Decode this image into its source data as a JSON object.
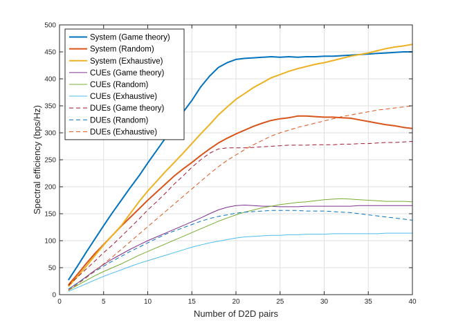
{
  "chart_data": {
    "type": "line",
    "title": "",
    "xlabel": "Number of D2D pairs",
    "ylabel": "Spectral efficiency (bps/Hz)",
    "xlim": [
      0,
      40
    ],
    "ylim": [
      0,
      500
    ],
    "xticks": [
      0,
      5,
      10,
      15,
      20,
      25,
      30,
      35,
      40
    ],
    "yticks": [
      0,
      50,
      100,
      150,
      200,
      250,
      300,
      350,
      400,
      450,
      500
    ],
    "grid": true,
    "legend_position": "top-left",
    "x": [
      1,
      2,
      3,
      4,
      5,
      6,
      7,
      8,
      9,
      10,
      11,
      12,
      13,
      14,
      15,
      16,
      17,
      18,
      19,
      20,
      21,
      22,
      23,
      24,
      25,
      26,
      27,
      28,
      29,
      30,
      31,
      32,
      33,
      34,
      35,
      36,
      37,
      38,
      39,
      40
    ],
    "series": [
      {
        "name": "System (Game theory)",
        "color": "#0072BD",
        "dash": "solid",
        "width": 2,
        "values": [
          27,
          52,
          78,
          103,
          128,
          152,
          175,
          198,
          220,
          244,
          267,
          290,
          315,
          338,
          360,
          385,
          405,
          421,
          430,
          436,
          438,
          439,
          440,
          441,
          440,
          441,
          440,
          441,
          441,
          442,
          442,
          443,
          444,
          445,
          446,
          447,
          448,
          449,
          450,
          450
        ]
      },
      {
        "name": "System (Random)",
        "color": "#D95319",
        "dash": "solid",
        "width": 2,
        "values": [
          18,
          37,
          57,
          76,
          93,
          110,
          127,
          143,
          159,
          175,
          190,
          205,
          220,
          233,
          245,
          258,
          270,
          281,
          290,
          298,
          305,
          312,
          318,
          323,
          326,
          328,
          331,
          331,
          330,
          329,
          329,
          328,
          327,
          324,
          321,
          318,
          315,
          313,
          310,
          308
        ]
      },
      {
        "name": "System (Exhaustive)",
        "color": "#EDB120",
        "dash": "solid",
        "width": 2,
        "values": [
          15,
          33,
          52,
          72,
          92,
          110,
          128,
          150,
          172,
          192,
          210,
          228,
          245,
          262,
          280,
          298,
          315,
          333,
          348,
          362,
          373,
          384,
          393,
          402,
          408,
          414,
          419,
          423,
          427,
          430,
          434,
          438,
          442,
          445,
          448,
          452,
          456,
          459,
          461,
          464
        ]
      },
      {
        "name": "CUEs (Game theory)",
        "color": "#7E2F8E",
        "dash": "solid",
        "width": 1,
        "values": [
          10,
          21,
          33,
          45,
          56,
          66,
          75,
          84,
          92,
          100,
          107,
          114,
          121,
          128,
          135,
          142,
          150,
          157,
          162,
          165,
          166,
          165,
          164,
          164,
          163,
          163,
          163,
          164,
          164,
          164,
          164,
          164,
          164,
          165,
          165,
          165,
          165,
          165,
          165,
          165
        ]
      },
      {
        "name": "CUEs (Random)",
        "color": "#77AC30",
        "dash": "solid",
        "width": 1,
        "values": [
          8,
          17,
          26,
          35,
          43,
          50,
          57,
          65,
          73,
          80,
          87,
          94,
          101,
          108,
          115,
          122,
          129,
          136,
          142,
          148,
          153,
          157,
          161,
          164,
          167,
          169,
          171,
          172,
          174,
          176,
          177,
          178,
          177,
          176,
          175,
          174,
          173,
          173,
          173,
          172
        ]
      },
      {
        "name": "CUEs (Exhaustive)",
        "color": "#4DBEEE",
        "dash": "solid",
        "width": 1,
        "values": [
          6,
          13,
          20,
          27,
          34,
          40,
          46,
          52,
          58,
          63,
          68,
          73,
          78,
          83,
          88,
          92,
          96,
          99,
          102,
          105,
          107,
          108,
          109,
          110,
          110,
          111,
          111,
          112,
          112,
          112,
          113,
          113,
          113,
          113,
          113,
          113,
          114,
          114,
          114,
          114
        ]
      },
      {
        "name": "DUEs (Game theory)",
        "color": "#A2142F",
        "dash": "dashed",
        "width": 1,
        "values": [
          17,
          32,
          47,
          62,
          78,
          92,
          108,
          124,
          140,
          157,
          172,
          188,
          205,
          220,
          236,
          250,
          262,
          270,
          272,
          272,
          272,
          273,
          274,
          275,
          276,
          277,
          277,
          277,
          278,
          278,
          278,
          279,
          279,
          280,
          280,
          281,
          282,
          282,
          283,
          284
        ]
      },
      {
        "name": "DUEs (Random)",
        "color": "#0072BD",
        "dash": "dashed",
        "width": 1,
        "values": [
          10,
          21,
          32,
          43,
          53,
          62,
          71,
          80,
          88,
          96,
          104,
          112,
          118,
          124,
          130,
          136,
          141,
          145,
          148,
          151,
          153,
          154,
          155,
          156,
          156,
          156,
          156,
          155,
          155,
          155,
          154,
          153,
          152,
          150,
          148,
          146,
          144,
          142,
          140,
          138
        ]
      },
      {
        "name": "DUEs (Exhaustive)",
        "color": "#D95319",
        "dash": "dashed",
        "width": 1,
        "values": [
          8,
          19,
          31,
          44,
          57,
          70,
          84,
          98,
          112,
          126,
          140,
          154,
          168,
          182,
          196,
          210,
          224,
          237,
          249,
          259,
          269,
          278,
          286,
          294,
          300,
          305,
          310,
          314,
          318,
          322,
          326,
          330,
          333,
          336,
          339,
          342,
          344,
          346,
          348,
          350
        ]
      }
    ]
  }
}
